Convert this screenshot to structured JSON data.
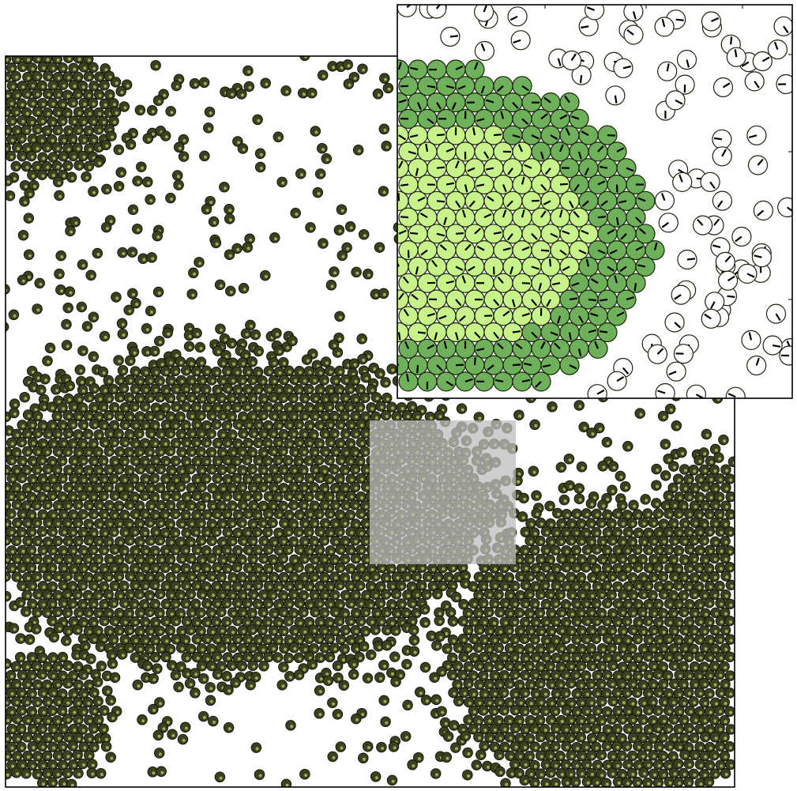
{
  "figure": {
    "type": "particle-simulation-snapshot",
    "main_panel": {
      "frame_color": "#000000",
      "background": "#ffffff",
      "particle_fill": "#3a4020",
      "particle_edge": "#0f1206",
      "particle_highlight": "#b8c464",
      "highlight_region_color": "#bdbdbd"
    },
    "inset_panel": {
      "frame_color": "#000000",
      "background": "#ffffff",
      "particle_types": [
        {
          "name": "dense-core",
          "fill": "#c8f28a"
        },
        {
          "name": "cluster-edge",
          "fill": "#6fb05a"
        },
        {
          "name": "gas",
          "fill": "#ffffff"
        }
      ],
      "orientation_tick_color": "#000000"
    }
  }
}
